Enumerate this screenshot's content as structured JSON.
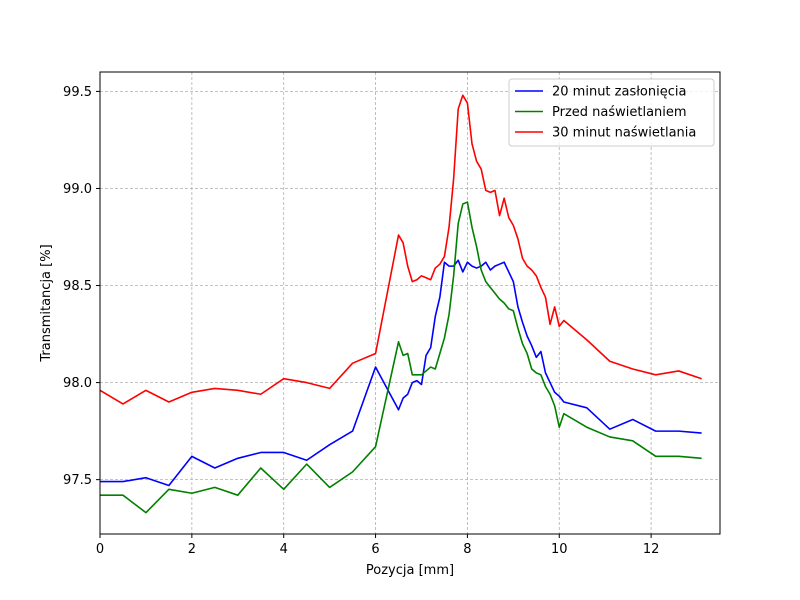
{
  "chart_data": {
    "type": "line",
    "title": "",
    "xlabel": "Pozycja [mm]",
    "ylabel": "Transmitancja [%]",
    "xlim": [
      0,
      13.5
    ],
    "ylim": [
      97.22,
      99.6
    ],
    "xticks": [
      0,
      2,
      4,
      6,
      8,
      10,
      12
    ],
    "yticks": [
      97.5,
      98.0,
      98.5,
      99.0,
      99.5
    ],
    "xtick_labels": [
      "0",
      "2",
      "4",
      "6",
      "8",
      "10",
      "12"
    ],
    "ytick_labels": [
      "97.5",
      "98.0",
      "98.5",
      "99.0",
      "99.5"
    ],
    "grid": true,
    "legend_position": "top-right",
    "series": [
      {
        "name": "20 minut zasłonięcia",
        "color": "#0000ff",
        "x": [
          0,
          0.5,
          1.0,
          1.5,
          2.0,
          2.5,
          3.0,
          3.5,
          4.0,
          4.5,
          5.0,
          5.5,
          6.0,
          6.5,
          6.6,
          6.7,
          6.8,
          6.9,
          7.0,
          7.1,
          7.2,
          7.3,
          7.4,
          7.5,
          7.6,
          7.7,
          7.8,
          7.9,
          8.0,
          8.1,
          8.2,
          8.3,
          8.4,
          8.5,
          8.6,
          8.7,
          8.8,
          8.9,
          9.0,
          9.1,
          9.2,
          9.3,
          9.4,
          9.5,
          9.6,
          9.7,
          9.8,
          9.9,
          10.0,
          10.1,
          10.6,
          11.1,
          11.6,
          12.1,
          12.6,
          13.1
        ],
        "values": [
          97.49,
          97.49,
          97.51,
          97.47,
          97.62,
          97.56,
          97.61,
          97.64,
          97.64,
          97.6,
          97.68,
          97.75,
          98.08,
          97.86,
          97.92,
          97.94,
          98.0,
          98.01,
          97.99,
          98.14,
          98.18,
          98.34,
          98.44,
          98.62,
          98.6,
          98.6,
          98.63,
          98.57,
          98.62,
          98.6,
          98.59,
          98.6,
          98.62,
          98.58,
          98.6,
          98.61,
          98.62,
          98.57,
          98.52,
          98.39,
          98.31,
          98.24,
          98.19,
          98.13,
          98.16,
          98.05,
          98.0,
          97.95,
          97.93,
          97.9,
          97.87,
          97.76,
          97.81,
          97.75,
          97.75,
          97.74
        ]
      },
      {
        "name": "Przed naświetlaniem",
        "color": "#008000",
        "x": [
          0,
          0.5,
          1.0,
          1.5,
          2.0,
          2.5,
          3.0,
          3.5,
          4.0,
          4.5,
          5.0,
          5.5,
          6.0,
          6.5,
          6.6,
          6.7,
          6.8,
          6.9,
          7.0,
          7.1,
          7.2,
          7.3,
          7.4,
          7.5,
          7.6,
          7.7,
          7.8,
          7.9,
          8.0,
          8.1,
          8.2,
          8.3,
          8.4,
          8.5,
          8.6,
          8.7,
          8.8,
          8.9,
          9.0,
          9.1,
          9.2,
          9.3,
          9.4,
          9.5,
          9.6,
          9.7,
          9.8,
          9.9,
          10.0,
          10.1,
          10.6,
          11.1,
          11.6,
          12.1,
          12.6,
          13.1
        ],
        "values": [
          97.42,
          97.42,
          97.33,
          97.45,
          97.43,
          97.46,
          97.42,
          97.56,
          97.45,
          97.58,
          97.46,
          97.54,
          97.67,
          98.21,
          98.14,
          98.15,
          98.04,
          98.04,
          98.04,
          98.06,
          98.08,
          98.07,
          98.15,
          98.23,
          98.35,
          98.55,
          98.82,
          98.92,
          98.93,
          98.8,
          98.7,
          98.58,
          98.52,
          98.49,
          98.46,
          98.43,
          98.41,
          98.38,
          98.37,
          98.28,
          98.2,
          98.15,
          98.07,
          98.05,
          98.04,
          97.98,
          97.94,
          97.88,
          97.77,
          97.84,
          97.77,
          97.72,
          97.7,
          97.62,
          97.62,
          97.61
        ]
      },
      {
        "name": "30 minut naświetlania",
        "color": "#ff0000",
        "x": [
          0,
          0.5,
          1.0,
          1.5,
          2.0,
          2.5,
          3.0,
          3.5,
          4.0,
          4.5,
          5.0,
          5.5,
          6.0,
          6.5,
          6.6,
          6.7,
          6.8,
          6.9,
          7.0,
          7.1,
          7.2,
          7.3,
          7.4,
          7.5,
          7.6,
          7.7,
          7.8,
          7.9,
          8.0,
          8.1,
          8.2,
          8.3,
          8.4,
          8.5,
          8.6,
          8.7,
          8.8,
          8.9,
          9.0,
          9.1,
          9.2,
          9.3,
          9.4,
          9.5,
          9.6,
          9.7,
          9.8,
          9.9,
          10.0,
          10.1,
          10.6,
          11.1,
          11.6,
          12.1,
          12.6,
          13.1
        ],
        "values": [
          97.96,
          97.89,
          97.96,
          97.9,
          97.95,
          97.97,
          97.96,
          97.94,
          98.02,
          98.0,
          97.97,
          98.1,
          98.15,
          98.76,
          98.72,
          98.6,
          98.52,
          98.53,
          98.55,
          98.54,
          98.53,
          98.59,
          98.61,
          98.65,
          98.8,
          99.05,
          99.41,
          99.48,
          99.44,
          99.23,
          99.14,
          99.1,
          98.99,
          98.98,
          98.99,
          98.86,
          98.95,
          98.85,
          98.81,
          98.74,
          98.64,
          98.6,
          98.58,
          98.55,
          98.49,
          98.44,
          98.3,
          98.39,
          98.29,
          98.32,
          98.22,
          98.11,
          98.07,
          98.04,
          98.06,
          98.02
        ]
      }
    ]
  }
}
